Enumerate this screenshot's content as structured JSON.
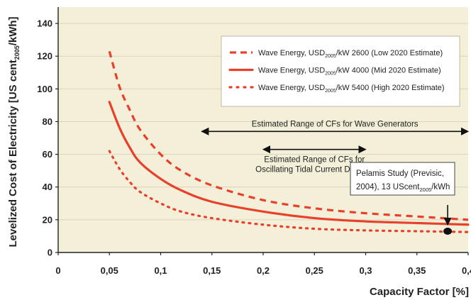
{
  "chart_data": {
    "type": "line",
    "xlabel": "Capacity Factor [%]",
    "ylabel": "Levelized Cost of Electricity [US cent",
    "ylabel_sub": "2005",
    "ylabel_suffix": "/kWh]",
    "xlim": [
      0,
      0.4
    ],
    "ylim": [
      0,
      150
    ],
    "x_ticks": [
      "0",
      "0,05",
      "0,1",
      "0,15",
      "0,2",
      "0,25",
      "0,3",
      "0,35",
      "0,4"
    ],
    "y_ticks": [
      "0",
      "20",
      "40",
      "60",
      "80",
      "100",
      "120",
      "140"
    ],
    "grid": "horizontal",
    "background": "#f4efd9",
    "series_color": "#e8402a",
    "series": [
      {
        "style": "dashed",
        "legend_main": "Wave Energy, USD",
        "legend_sub": "2005",
        "legend_rest": "/kW 2600 (Low 2020 Estimate)",
        "x": [
          0.05,
          0.06,
          0.07,
          0.08,
          0.1,
          0.12,
          0.15,
          0.2,
          0.25,
          0.3,
          0.35,
          0.4
        ],
        "y": [
          123,
          101,
          87,
          75,
          60,
          50,
          41,
          32,
          27,
          24,
          22,
          20
        ]
      },
      {
        "style": "solid",
        "legend_main": "Wave Energy, USD",
        "legend_sub": "2005",
        "legend_rest": "/kW 4000 (Mid 2020 Estimate)",
        "x": [
          0.05,
          0.06,
          0.07,
          0.08,
          0.1,
          0.12,
          0.15,
          0.2,
          0.25,
          0.3,
          0.35,
          0.4
        ],
        "y": [
          92,
          76,
          64,
          55,
          45,
          38,
          31,
          25,
          21,
          19,
          18,
          17
        ]
      },
      {
        "style": "dotted",
        "legend_main": "Wave Energy, USD",
        "legend_sub": "2005",
        "legend_rest": "/kW 5400 (High 2020 Estimate)",
        "x": [
          0.05,
          0.06,
          0.07,
          0.08,
          0.1,
          0.12,
          0.15,
          0.2,
          0.25,
          0.3,
          0.35,
          0.4
        ],
        "y": [
          62,
          51,
          43,
          37,
          30,
          25,
          21,
          17,
          14.5,
          13.5,
          13,
          12.5
        ]
      }
    ],
    "ranges": [
      {
        "label": "Estimated Range of CFs for Wave Generators",
        "x_start": 0.14,
        "x_end": 0.4,
        "y": 74
      },
      {
        "label_line1": "Estimated Range of CFs for",
        "label_line2": "Oscillating Tidal Current Devices",
        "x_start": 0.2,
        "x_end": 0.3,
        "y": 63
      }
    ],
    "pelamis": {
      "line1": "Pelamis Study (Previsic,",
      "line2_main": "2004), 13 UScent",
      "line2_sub": "2005",
      "line2_rest": "/kWh",
      "x": 0.38,
      "y": 13
    }
  }
}
